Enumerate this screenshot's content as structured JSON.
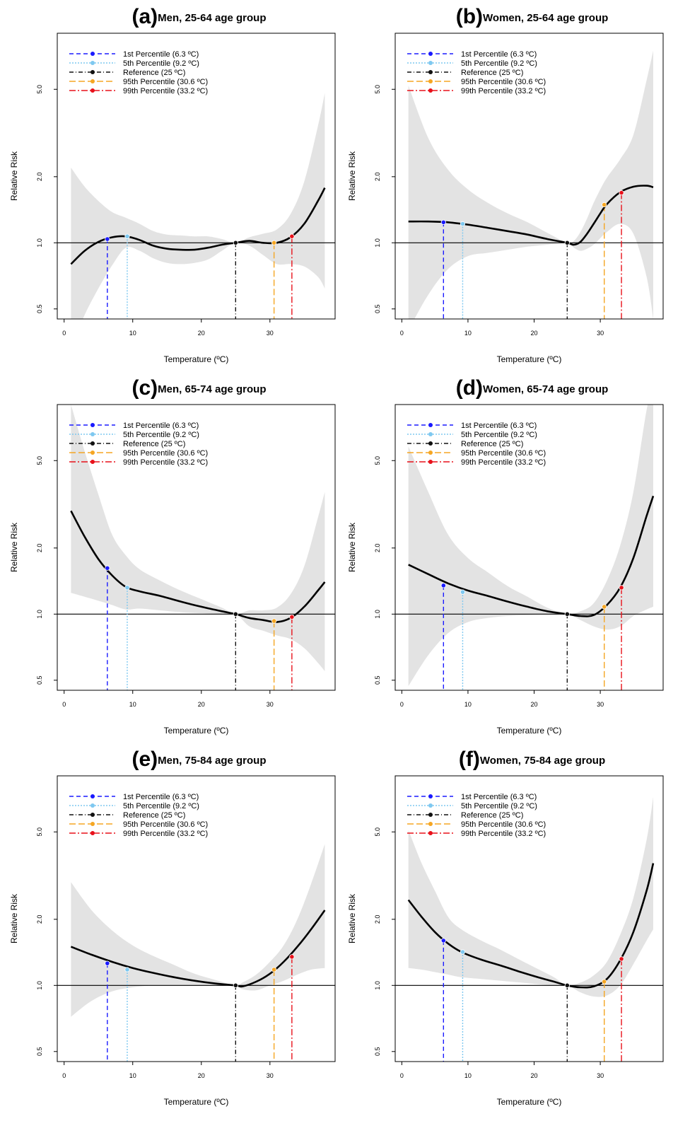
{
  "figure": {
    "legend": [
      {
        "label": "1st Percentile (6.3 ºC)",
        "color": "#1a1aff",
        "dash": "6,4"
      },
      {
        "label": "5th Percentile (9.2 ºC)",
        "color": "#7ec8f0",
        "dash": "2,2"
      },
      {
        "label": "Reference (25 ºC)",
        "color": "#111111",
        "dash": "6,3,1,3"
      },
      {
        "label": "95th Percentile (30.6 ºC)",
        "color": "#f5a623",
        "dash": "9,4"
      },
      {
        "label": "99th Percentile (33.2 ºC)",
        "color": "#e8111a",
        "dash": "9,3,2,3"
      }
    ],
    "percentile_x": [
      6.3,
      9.2,
      25,
      30.6,
      33.2
    ]
  },
  "chart_data": [
    {
      "type": "line",
      "letter": "(a)",
      "title": "Men, 25-64 age group",
      "xlabel": "Temperature (ºC)",
      "ylabel": "Relative Risk",
      "xticks": [
        0,
        10,
        20,
        30
      ],
      "yticks": [
        "0.5",
        "1.0",
        "2.0",
        "5.0"
      ],
      "xlim": [
        -1,
        39.5
      ],
      "ylim": [
        0.45,
        9.0
      ],
      "log_y": true,
      "x": [
        1,
        3,
        5,
        7,
        9,
        11,
        13,
        15,
        17,
        19,
        21,
        23,
        25,
        27,
        29,
        31,
        33,
        35,
        37,
        38
      ],
      "rr": [
        0.8,
        0.92,
        1.01,
        1.06,
        1.07,
        1.03,
        0.97,
        0.94,
        0.93,
        0.93,
        0.95,
        0.98,
        1.0,
        1.02,
        1.0,
        1.0,
        1.06,
        1.22,
        1.55,
        1.78
      ],
      "ci_low": [
        0.33,
        0.47,
        0.62,
        0.79,
        0.95,
        0.92,
        0.85,
        0.81,
        0.8,
        0.81,
        0.84,
        0.92,
        1.0,
        0.97,
        0.88,
        0.8,
        0.8,
        0.78,
        0.7,
        0.62
      ],
      "ci_high": [
        2.2,
        1.8,
        1.55,
        1.38,
        1.3,
        1.22,
        1.13,
        1.09,
        1.08,
        1.07,
        1.07,
        1.04,
        1.0,
        1.06,
        1.1,
        1.15,
        1.35,
        1.9,
        3.4,
        4.8
      ],
      "point_rr": [
        1.04,
        1.07,
        1.0,
        1.0,
        1.07
      ]
    },
    {
      "type": "line",
      "letter": "(b)",
      "title": "Women, 25-64 age group",
      "xlabel": "Temperature (ºC)",
      "ylabel": "Relative Risk",
      "xticks": [
        0,
        10,
        20,
        30
      ],
      "yticks": [
        "0.5",
        "1.0",
        "2.0",
        "5.0"
      ],
      "xlim": [
        -1,
        39.5
      ],
      "ylim": [
        0.45,
        9.0
      ],
      "log_y": true,
      "x": [
        1,
        4,
        7,
        10,
        13,
        16,
        19,
        22,
        25,
        26,
        27,
        28,
        29,
        30,
        31,
        33,
        35,
        37,
        38
      ],
      "rr": [
        1.25,
        1.25,
        1.24,
        1.21,
        1.17,
        1.13,
        1.09,
        1.04,
        1.0,
        0.98,
        1.01,
        1.1,
        1.22,
        1.36,
        1.5,
        1.7,
        1.8,
        1.82,
        1.79
      ],
      "ci_low": [
        0.4,
        0.58,
        0.76,
        0.87,
        0.9,
        0.93,
        0.96,
        0.98,
        1.0,
        0.95,
        0.92,
        0.94,
        0.98,
        1.05,
        1.12,
        1.22,
        1.1,
        0.7,
        0.45
      ],
      "ci_high": [
        5.2,
        3.0,
        2.15,
        1.75,
        1.52,
        1.36,
        1.24,
        1.11,
        1.0,
        1.02,
        1.12,
        1.29,
        1.52,
        1.75,
        1.98,
        2.4,
        3.1,
        5.5,
        7.5
      ],
      "point_rr": [
        1.24,
        1.22,
        1.0,
        1.49,
        1.69
      ]
    },
    {
      "type": "line",
      "letter": "(c)",
      "title": "Men, 65-74 age group",
      "xlabel": "Temperature (ºC)",
      "ylabel": "Relative Risk",
      "xticks": [
        0,
        10,
        20,
        30
      ],
      "yticks": [
        "0.5",
        "1.0",
        "2.0",
        "5.0"
      ],
      "xlim": [
        -1,
        39.5
      ],
      "ylim": [
        0.45,
        9.0
      ],
      "log_y": true,
      "x": [
        1,
        3,
        5,
        7,
        9,
        11,
        14,
        17,
        20,
        23,
        25,
        27,
        29,
        31,
        33,
        35,
        37,
        38
      ],
      "rr": [
        2.95,
        2.25,
        1.78,
        1.5,
        1.33,
        1.27,
        1.21,
        1.14,
        1.08,
        1.03,
        1.0,
        0.96,
        0.94,
        0.92,
        0.96,
        1.08,
        1.28,
        1.4
      ],
      "ci_low": [
        1.25,
        1.2,
        1.15,
        1.1,
        1.05,
        1.06,
        1.04,
        1.02,
        1.01,
        1.0,
        1.0,
        0.88,
        0.84,
        0.8,
        0.77,
        0.7,
        0.6,
        0.55
      ],
      "ci_high": [
        9.0,
        5.5,
        3.5,
        2.3,
        1.85,
        1.6,
        1.42,
        1.28,
        1.17,
        1.07,
        1.0,
        1.04,
        1.04,
        1.07,
        1.23,
        1.65,
        2.75,
        3.6
      ],
      "point_rr": [
        1.62,
        1.32,
        1.0,
        0.93,
        0.97
      ]
    },
    {
      "type": "line",
      "letter": "(d)",
      "title": "Women, 65-74 age group",
      "xlabel": "Temperature (ºC)",
      "ylabel": "Relative Risk",
      "xticks": [
        0,
        10,
        20,
        30
      ],
      "yticks": [
        "0.5",
        "1.0",
        "2.0",
        "5.0"
      ],
      "xlim": [
        -1,
        39.5
      ],
      "ylim": [
        0.45,
        9.0
      ],
      "log_y": true,
      "x": [
        1,
        4,
        7,
        10,
        13,
        16,
        19,
        22,
        25,
        27,
        29,
        31,
        33,
        35,
        37,
        38
      ],
      "rr": [
        1.68,
        1.52,
        1.38,
        1.28,
        1.21,
        1.14,
        1.08,
        1.03,
        1.0,
        0.98,
        0.99,
        1.1,
        1.32,
        1.8,
        2.8,
        3.45
      ],
      "ci_low": [
        0.47,
        0.65,
        0.82,
        0.92,
        0.96,
        0.98,
        0.99,
        1.0,
        1.0,
        0.94,
        0.88,
        0.85,
        0.88,
        0.98,
        1.05,
        1.08
      ],
      "ci_high": [
        5.8,
        3.6,
        2.3,
        1.8,
        1.55,
        1.34,
        1.2,
        1.07,
        1.0,
        1.03,
        1.12,
        1.42,
        2.05,
        3.6,
        8.5,
        11.0
      ],
      "point_rr": [
        1.35,
        1.26,
        1.0,
        1.08,
        1.32
      ]
    },
    {
      "type": "line",
      "letter": "(e)",
      "title": "Men, 75-84 age group",
      "xlabel": "Temperature (ºC)",
      "ylabel": "Relative Risk",
      "xticks": [
        0,
        10,
        20,
        30
      ],
      "yticks": [
        "0.5",
        "1.0",
        "2.0",
        "5.0"
      ],
      "xlim": [
        -1,
        39.5
      ],
      "ylim": [
        0.45,
        9.0
      ],
      "log_y": true,
      "x": [
        1,
        4,
        7,
        10,
        13,
        16,
        19,
        22,
        25,
        26,
        28,
        30,
        32,
        34,
        36,
        38
      ],
      "rr": [
        1.5,
        1.38,
        1.28,
        1.2,
        1.14,
        1.09,
        1.05,
        1.02,
        1.0,
        0.99,
        1.04,
        1.13,
        1.28,
        1.5,
        1.8,
        2.2
      ],
      "ci_low": [
        0.72,
        0.85,
        0.94,
        0.98,
        1.0,
        1.0,
        1.0,
        1.0,
        1.0,
        0.96,
        0.95,
        1.0,
        1.05,
        1.12,
        1.18,
        1.2
      ],
      "ci_high": [
        2.95,
        2.2,
        1.78,
        1.52,
        1.36,
        1.24,
        1.13,
        1.06,
        1.0,
        1.03,
        1.12,
        1.28,
        1.52,
        2.0,
        2.9,
        4.4
      ],
      "point_rr": [
        1.26,
        1.18,
        1.0,
        1.18,
        1.35
      ]
    },
    {
      "type": "line",
      "letter": "(f)",
      "title": "Women, 75-84 age group",
      "xlabel": "Temperature (ºC)",
      "ylabel": "Relative Risk",
      "xticks": [
        0,
        10,
        20,
        30
      ],
      "yticks": [
        "0.5",
        "1.0",
        "2.0",
        "5.0"
      ],
      "xlim": [
        -1,
        39.5
      ],
      "ylim": [
        0.45,
        9.0
      ],
      "log_y": true,
      "x": [
        1,
        3,
        5,
        7,
        9,
        12,
        15,
        18,
        21,
        23,
        25,
        27,
        29,
        31,
        33,
        35,
        37,
        38
      ],
      "rr": [
        2.45,
        2.05,
        1.75,
        1.55,
        1.42,
        1.31,
        1.23,
        1.15,
        1.08,
        1.04,
        1.0,
        0.98,
        0.99,
        1.07,
        1.3,
        1.75,
        2.7,
        3.6
      ],
      "ci_low": [
        1.2,
        1.18,
        1.15,
        1.12,
        1.09,
        1.07,
        1.05,
        1.03,
        1.01,
        1.0,
        1.0,
        0.93,
        0.89,
        0.9,
        1.0,
        1.25,
        1.6,
        1.8
      ],
      "ci_high": [
        5.1,
        3.6,
        2.7,
        2.05,
        1.8,
        1.6,
        1.45,
        1.3,
        1.17,
        1.09,
        1.0,
        1.03,
        1.11,
        1.28,
        1.7,
        2.5,
        4.6,
        7.2
      ],
      "point_rr": [
        1.6,
        1.42,
        1.0,
        1.04,
        1.32
      ]
    }
  ]
}
